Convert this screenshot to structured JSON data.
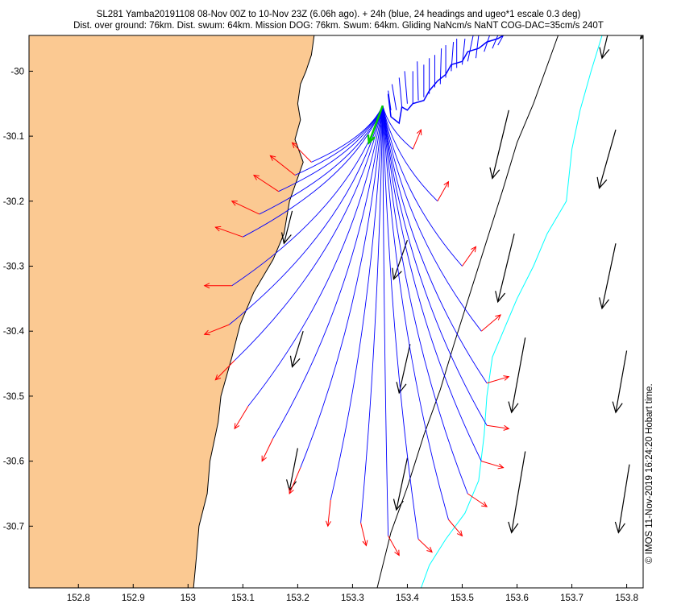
{
  "title_line1": "SL281 Yamba20191108 08-Nov 00Z to 10-Nov 23Z (6.06h ago). + 24h (blue, 24 headings and ugeo*1 escale 0.3 deg)",
  "title_line2": "Dist. over ground: 76km. Dist. swum: 64km. Mission DOG: 76km. Swum: 64km. Gliding NaNcm/s NaNT COG-DAC=35cm/s 240T",
  "credit": "© IMOS 11-Nov-2019 16:24:20 Hobart time.",
  "colors": {
    "land": "#fbc992",
    "track": "#0000ff",
    "prediction": "#0000ff",
    "heading_arrow": "#ff0000",
    "current_arrow": "#000000",
    "latest_arrow": "#00cc00",
    "contour_cyan": "#00ffff",
    "contour_black": "#000000"
  },
  "chart_data": {
    "type": "map",
    "xlim": [
      152.71,
      153.83
    ],
    "ylim": [
      -30.795,
      -29.945
    ],
    "x_ticks": [
      "152.8",
      "152.9",
      "153",
      "153.1",
      "153.2",
      "153.3",
      "153.4",
      "153.5",
      "153.6",
      "153.7",
      "153.8"
    ],
    "x_tick_values": [
      152.8,
      152.9,
      153.0,
      153.1,
      153.2,
      153.3,
      153.4,
      153.5,
      153.6,
      153.7,
      153.8
    ],
    "y_ticks": [
      "-30",
      "-30.1",
      "-30.2",
      "-30.3",
      "-30.4",
      "-30.5",
      "-30.6",
      "-30.7"
    ],
    "y_tick_values": [
      -30.0,
      -30.1,
      -30.2,
      -30.3,
      -30.4,
      -30.5,
      -30.6,
      -30.7
    ],
    "origin": [
      153.355,
      -30.053
    ],
    "latest_heading_end": [
      153.33,
      -30.11
    ],
    "coastline": [
      [
        152.71,
        -29.945
      ],
      [
        153.23,
        -29.945
      ],
      [
        153.225,
        -29.975
      ],
      [
        153.215,
        -30.0
      ],
      [
        153.205,
        -30.02
      ],
      [
        153.2,
        -30.05
      ],
      [
        153.205,
        -30.075
      ],
      [
        153.195,
        -30.105
      ],
      [
        153.21,
        -30.14
      ],
      [
        153.185,
        -30.2
      ],
      [
        153.175,
        -30.25
      ],
      [
        153.155,
        -30.29
      ],
      [
        153.12,
        -30.34
      ],
      [
        153.095,
        -30.39
      ],
      [
        153.08,
        -30.44
      ],
      [
        153.06,
        -30.5
      ],
      [
        153.055,
        -30.54
      ],
      [
        153.04,
        -30.6
      ],
      [
        153.035,
        -30.65
      ],
      [
        153.02,
        -30.7
      ],
      [
        153.015,
        -30.75
      ],
      [
        153.01,
        -30.795
      ],
      [
        152.71,
        -30.795
      ]
    ],
    "track": [
      [
        153.365,
        -30.035
      ],
      [
        153.37,
        -30.07
      ],
      [
        153.385,
        -30.08
      ],
      [
        153.39,
        -30.055
      ],
      [
        153.4,
        -30.06
      ],
      [
        153.41,
        -30.05
      ],
      [
        153.43,
        -30.045
      ],
      [
        153.44,
        -30.03
      ],
      [
        153.455,
        -30.015
      ],
      [
        153.47,
        -30.005
      ],
      [
        153.48,
        -29.99
      ],
      [
        153.5,
        -29.985
      ],
      [
        153.51,
        -29.97
      ],
      [
        153.53,
        -29.965
      ],
      [
        153.545,
        -29.955
      ],
      [
        153.565,
        -29.95
      ],
      [
        153.575,
        -29.945
      ]
    ],
    "track_headings": [
      [
        153.37,
        -30.06,
        153.365,
        -30.03
      ],
      [
        153.38,
        -30.06,
        153.372,
        -30.02
      ],
      [
        153.39,
        -30.055,
        153.385,
        -30.01
      ],
      [
        153.4,
        -30.05,
        153.395,
        -30.0
      ],
      [
        153.41,
        -30.05,
        153.41,
        -30.0
      ],
      [
        153.42,
        -30.045,
        153.418,
        -29.985
      ],
      [
        153.43,
        -30.04,
        153.43,
        -29.99
      ],
      [
        153.44,
        -30.035,
        153.44,
        -29.98
      ],
      [
        153.45,
        -30.025,
        153.45,
        -29.975
      ],
      [
        153.46,
        -30.02,
        153.462,
        -29.965
      ],
      [
        153.47,
        -30.01,
        153.47,
        -29.96
      ],
      [
        153.48,
        -30.0,
        153.484,
        -29.955
      ],
      [
        153.49,
        -29.995,
        153.49,
        -29.95
      ],
      [
        153.5,
        -29.99,
        153.505,
        -29.95
      ],
      [
        153.51,
        -29.985,
        153.52,
        -29.945
      ],
      [
        153.525,
        -29.98,
        153.53,
        -29.945
      ],
      [
        153.54,
        -29.97,
        153.55,
        -29.945
      ],
      [
        153.555,
        -29.965,
        153.565,
        -29.945
      ],
      [
        153.565,
        -29.96,
        153.575,
        -29.945
      ]
    ],
    "predictions": [
      {
        "end": [
          153.225,
          -30.14
        ],
        "arrow_to": [
          153.19,
          -30.11
        ]
      },
      {
        "end": [
          153.195,
          -30.16
        ],
        "arrow_to": [
          153.15,
          -30.13
        ]
      },
      {
        "end": [
          153.165,
          -30.185
        ],
        "arrow_to": [
          153.12,
          -30.16
        ]
      },
      {
        "end": [
          153.13,
          -30.22
        ],
        "arrow_to": [
          153.08,
          -30.2
        ]
      },
      {
        "end": [
          153.1,
          -30.255
        ],
        "arrow_to": [
          153.05,
          -30.24
        ]
      },
      {
        "end": [
          153.08,
          -30.33
        ],
        "arrow_to": [
          153.03,
          -30.33
        ]
      },
      {
        "end": [
          153.075,
          -30.39
        ],
        "arrow_to": [
          153.03,
          -30.405
        ]
      },
      {
        "end": [
          153.085,
          -30.445
        ],
        "arrow_to": [
          153.05,
          -30.475
        ]
      },
      {
        "end": [
          153.11,
          -30.515
        ],
        "arrow_to": [
          153.085,
          -30.55
        ]
      },
      {
        "end": [
          153.155,
          -30.565
        ],
        "arrow_to": [
          153.135,
          -30.6
        ]
      },
      {
        "end": [
          153.205,
          -30.61
        ],
        "arrow_to": [
          153.185,
          -30.65
        ]
      },
      {
        "end": [
          153.26,
          -30.66
        ],
        "arrow_to": [
          153.255,
          -30.7
        ]
      },
      {
        "end": [
          153.315,
          -30.695
        ],
        "arrow_to": [
          153.325,
          -30.73
        ]
      },
      {
        "end": [
          153.365,
          -30.715
        ],
        "arrow_to": [
          153.385,
          -30.745
        ]
      },
      {
        "end": [
          153.42,
          -30.72
        ],
        "arrow_to": [
          153.445,
          -30.74
        ]
      },
      {
        "end": [
          153.475,
          -30.69
        ],
        "arrow_to": [
          153.5,
          -30.715
        ]
      },
      {
        "end": [
          153.51,
          -30.65
        ],
        "arrow_to": [
          153.545,
          -30.67
        ]
      },
      {
        "end": [
          153.535,
          -30.6
        ],
        "arrow_to": [
          153.575,
          -30.61
        ]
      },
      {
        "end": [
          153.545,
          -30.545
        ],
        "arrow_to": [
          153.585,
          -30.55
        ]
      },
      {
        "end": [
          153.545,
          -30.48
        ],
        "arrow_to": [
          153.585,
          -30.47
        ]
      },
      {
        "end": [
          153.535,
          -30.4
        ],
        "arrow_to": [
          153.57,
          -30.375
        ]
      },
      {
        "end": [
          153.5,
          -30.3
        ],
        "arrow_to": [
          153.525,
          -30.27
        ]
      },
      {
        "end": [
          153.455,
          -30.2
        ],
        "arrow_to": [
          153.475,
          -30.17
        ]
      },
      {
        "end": [
          153.41,
          -30.12
        ],
        "arrow_to": [
          153.425,
          -30.09
        ]
      }
    ],
    "currents": [
      {
        "from": [
          153.585,
          -30.06
        ],
        "to": [
          153.555,
          -30.165
        ]
      },
      {
        "from": [
          153.78,
          -30.09
        ],
        "to": [
          153.75,
          -30.18
        ]
      },
      {
        "from": [
          153.83,
          -29.945
        ],
        "to": [
          153.825,
          -29.95
        ]
      },
      {
        "from": [
          153.765,
          -29.945
        ],
        "to": [
          153.755,
          -29.98
        ]
      },
      {
        "from": [
          153.19,
          -30.215
        ],
        "to": [
          153.175,
          -30.265
        ]
      },
      {
        "from": [
          153.4,
          -30.26
        ],
        "to": [
          153.375,
          -30.32
        ]
      },
      {
        "from": [
          153.595,
          -30.25
        ],
        "to": [
          153.565,
          -30.355
        ]
      },
      {
        "from": [
          153.78,
          -30.265
        ],
        "to": [
          153.755,
          -30.365
        ]
      },
      {
        "from": [
          153.21,
          -30.4
        ],
        "to": [
          153.19,
          -30.455
        ]
      },
      {
        "from": [
          153.405,
          -30.42
        ],
        "to": [
          153.385,
          -30.495
        ]
      },
      {
        "from": [
          153.615,
          -30.41
        ],
        "to": [
          153.59,
          -30.525
        ]
      },
      {
        "from": [
          153.8,
          -30.43
        ],
        "to": [
          153.78,
          -30.525
        ]
      },
      {
        "from": [
          153.2,
          -30.58
        ],
        "to": [
          153.185,
          -30.645
        ]
      },
      {
        "from": [
          153.4,
          -30.595
        ],
        "to": [
          153.38,
          -30.675
        ]
      },
      {
        "from": [
          153.615,
          -30.585
        ],
        "to": [
          153.59,
          -30.71
        ]
      },
      {
        "from": [
          153.805,
          -30.605
        ],
        "to": [
          153.785,
          -30.71
        ]
      }
    ],
    "contour_cyan": [
      [
        153.755,
        -29.945
      ],
      [
        153.735,
        -30.0
      ],
      [
        153.715,
        -30.06
      ],
      [
        153.7,
        -30.12
      ],
      [
        153.69,
        -30.2
      ],
      [
        153.655,
        -30.25
      ],
      [
        153.63,
        -30.3
      ],
      [
        153.6,
        -30.35
      ],
      [
        153.58,
        -30.39
      ],
      [
        153.555,
        -30.44
      ],
      [
        153.545,
        -30.5
      ],
      [
        153.54,
        -30.56
      ],
      [
        153.53,
        -30.63
      ],
      [
        153.505,
        -30.68
      ],
      [
        153.47,
        -30.72
      ],
      [
        153.44,
        -30.76
      ],
      [
        153.425,
        -30.795
      ]
    ],
    "contour_black": [
      [
        153.675,
        -29.945
      ],
      [
        153.63,
        -30.05
      ],
      [
        153.6,
        -30.11
      ],
      [
        153.575,
        -30.18
      ],
      [
        153.545,
        -30.26
      ],
      [
        153.515,
        -30.34
      ],
      [
        153.485,
        -30.42
      ],
      [
        153.46,
        -30.49
      ],
      [
        153.43,
        -30.56
      ],
      [
        153.4,
        -30.64
      ],
      [
        153.37,
        -30.71
      ],
      [
        153.345,
        -30.795
      ]
    ]
  }
}
